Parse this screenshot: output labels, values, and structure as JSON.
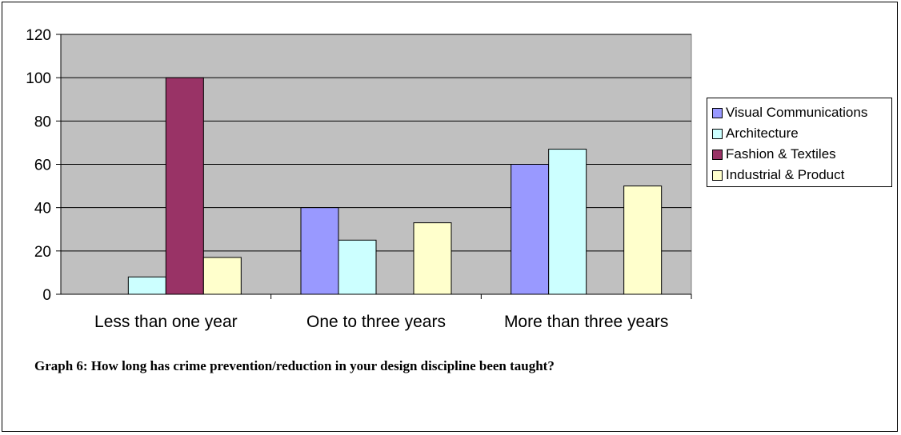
{
  "caption": "Graph 6: How long has crime prevention/reduction in your design discipline been taught?",
  "chart_data": {
    "type": "bar",
    "categories": [
      "Less than one year",
      "One to three years",
      "More than three years"
    ],
    "series": [
      {
        "name": "Visual Communications",
        "color": "#9999FF",
        "values": [
          0,
          40,
          60
        ]
      },
      {
        "name": "Architecture",
        "color": "#CCFFFF",
        "values": [
          8,
          25,
          67
        ]
      },
      {
        "name": "Fashion & Textiles",
        "color": "#993366",
        "values": [
          100,
          0,
          0
        ]
      },
      {
        "name": "Industrial & Product",
        "color": "#FFFFCC",
        "values": [
          17,
          33,
          50
        ]
      }
    ],
    "ylim": [
      0,
      120
    ],
    "yticks": [
      0,
      20,
      40,
      60,
      80,
      100,
      120
    ],
    "plot_background": "#C0C0C0",
    "grid": true,
    "legend": "right",
    "title": "",
    "xlabel": "",
    "ylabel": ""
  }
}
